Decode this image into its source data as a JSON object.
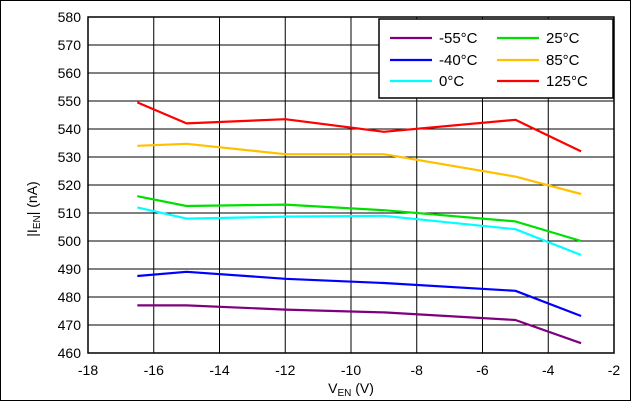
{
  "chart_data": {
    "type": "line",
    "title": "",
    "xlabel": {
      "main": "V",
      "sub": "EN",
      "unit": " (V)"
    },
    "ylabel": {
      "pre": "|I",
      "sub": "EN",
      "post": "| (nA)"
    },
    "xlim": [
      -18,
      -2
    ],
    "ylim": [
      460,
      580
    ],
    "x_ticks": [
      -18,
      -16,
      -14,
      -12,
      -10,
      -8,
      -6,
      -4,
      -2
    ],
    "y_ticks": [
      460,
      470,
      480,
      490,
      500,
      510,
      520,
      530,
      540,
      550,
      560,
      570,
      580
    ],
    "grid": true,
    "legend_position": "top-right",
    "series": [
      {
        "name": "-55°C",
        "color": "#7f007f",
        "x": [
          -16.5,
          -15,
          -12,
          -9,
          -5,
          -3
        ],
        "y": [
          477,
          477,
          475.5,
          474.5,
          471.8,
          463.5
        ]
      },
      {
        "name": "-40°C",
        "color": "#0000ff",
        "x": [
          -16.5,
          -15,
          -12,
          -9,
          -5,
          -3
        ],
        "y": [
          487.5,
          489,
          486.5,
          485,
          482.2,
          473.2
        ]
      },
      {
        "name": "0°C",
        "color": "#00ffff",
        "x": [
          -16.5,
          -15,
          -12,
          -9,
          -5,
          -3
        ],
        "y": [
          512,
          508,
          508.7,
          509,
          504.2,
          495
        ]
      },
      {
        "name": "25°C",
        "color": "#00e000",
        "x": [
          -16.5,
          -15,
          -12,
          -9,
          -5,
          -3
        ],
        "y": [
          516,
          512.5,
          513,
          511,
          507,
          500
        ]
      },
      {
        "name": "85°C",
        "color": "#ffc000",
        "x": [
          -16.5,
          -15,
          -12,
          -9,
          -5,
          -3
        ],
        "y": [
          534,
          534.7,
          531,
          531,
          523,
          516.8
        ]
      },
      {
        "name": "125°C",
        "color": "#ff0000",
        "x": [
          -16.5,
          -15,
          -12,
          -9,
          -5,
          -3
        ],
        "y": [
          549.5,
          542,
          543.5,
          539,
          543.3,
          532
        ]
      }
    ]
  }
}
